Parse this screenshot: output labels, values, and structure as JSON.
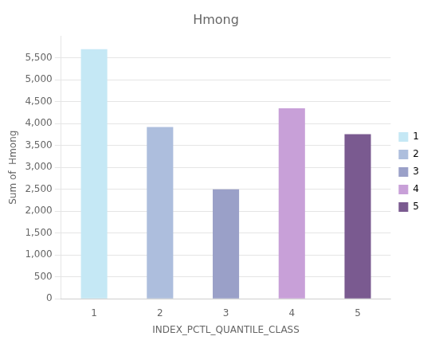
{
  "chart_data": {
    "type": "bar",
    "title": "Hmong",
    "xlabel": "INDEX_PCTL_QUANTILE_CLASS",
    "ylabel": "Sum of  Hmong",
    "categories": [
      "1",
      "2",
      "3",
      "4",
      "5"
    ],
    "values": [
      5700,
      3920,
      2500,
      4350,
      3760
    ],
    "colors": [
      "#c5e8f5",
      "#adbedd",
      "#9aa0c8",
      "#c8a0d8",
      "#7a5a90"
    ],
    "ylim": [
      0,
      6000
    ],
    "yticks": [
      0,
      500,
      {
        "value": 1000,
        "label": "1,000"
      },
      {
        "value": 1500,
        "label": "1,500"
      },
      {
        "value": 2000,
        "label": "2,000"
      },
      {
        "value": 2500,
        "label": "2,500"
      },
      {
        "value": 3000,
        "label": "3,000"
      },
      {
        "value": 3500,
        "label": "3,500"
      },
      {
        "value": 4000,
        "label": "4,000"
      },
      {
        "value": 4500,
        "label": "4,500"
      },
      {
        "value": 5000,
        "label": "5,000"
      },
      {
        "value": 5500,
        "label": "5,500"
      }
    ],
    "grid": true,
    "legend": "right"
  }
}
